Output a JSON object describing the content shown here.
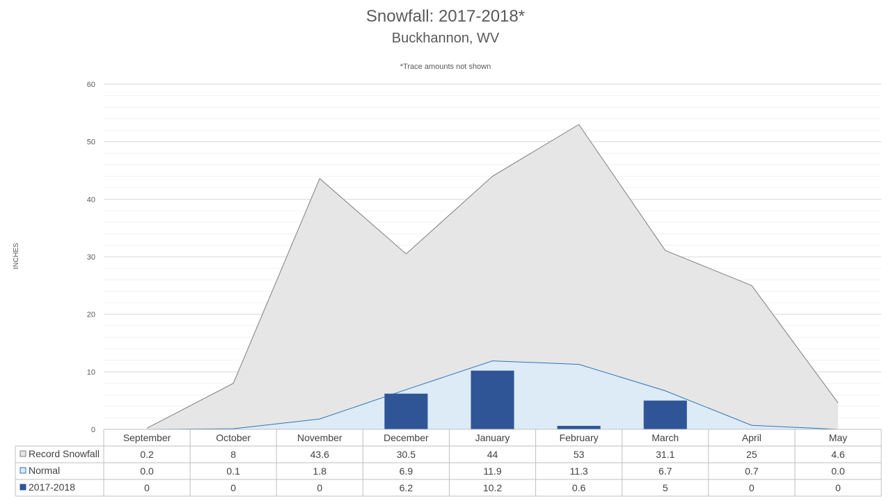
{
  "chart_data": {
    "type": "area",
    "title": "Snowfall: 2017-2018*",
    "subtitle": "Buckhannon, WV",
    "note": "*Trace amounts not shown",
    "ylabel": "INCHES",
    "ylim": [
      0,
      60
    ],
    "yticks": [
      0,
      10,
      20,
      30,
      40,
      50,
      60
    ],
    "categories": [
      "September",
      "October",
      "November",
      "December",
      "January",
      "February",
      "March",
      "April",
      "May"
    ],
    "series": [
      {
        "name": "Record Snowfall",
        "kind": "area",
        "color": "#e6e6e6",
        "line": "#7f7f7f",
        "values": [
          0.2,
          8,
          43.6,
          30.5,
          44,
          53,
          31.1,
          25,
          4.6
        ],
        "labels": [
          "0.2",
          "8",
          "43.6",
          "30.5",
          "44",
          "53",
          "31.1",
          "25",
          "4.6"
        ]
      },
      {
        "name": "Normal",
        "kind": "area",
        "color": "#ddebf7",
        "line": "#2e75b6",
        "values": [
          0.0,
          0.1,
          1.8,
          6.9,
          11.9,
          11.3,
          6.7,
          0.7,
          0.0
        ],
        "labels": [
          "0.0",
          "0.1",
          "1.8",
          "6.9",
          "11.9",
          "11.3",
          "6.7",
          "0.7",
          "0.0"
        ]
      },
      {
        "name": "2017-2018",
        "kind": "bar",
        "color": "#2f5597",
        "line": "#2f5597",
        "values": [
          0,
          0,
          0,
          6.2,
          10.2,
          0.6,
          5,
          0,
          0
        ],
        "labels": [
          "0",
          "0",
          "0",
          "6.2",
          "10.2",
          "0.6",
          "5",
          "0",
          "0"
        ]
      }
    ],
    "legend": "data-table",
    "grid": true
  }
}
